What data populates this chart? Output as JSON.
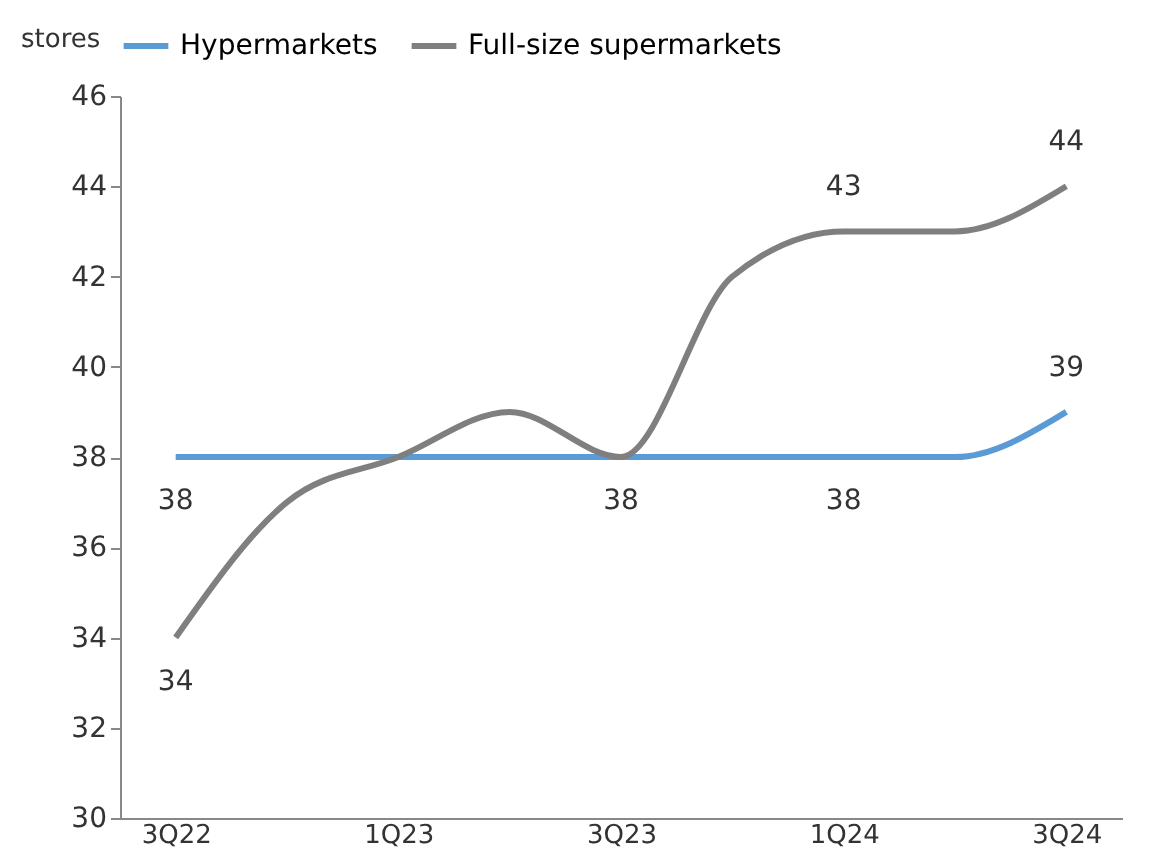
{
  "chart_data": {
    "type": "line",
    "ylabel": "stores",
    "categories": [
      "3Q22",
      null,
      "1Q23",
      null,
      "3Q23",
      null,
      "1Q24",
      null,
      "3Q24"
    ],
    "series": [
      {
        "name": "Hypermarkets",
        "color": "#5b9bd5",
        "values": [
          38,
          38,
          38,
          38,
          38,
          38,
          38,
          38,
          39
        ],
        "value_labels": [
          "38",
          null,
          null,
          null,
          "38",
          null,
          "38",
          null,
          "39"
        ]
      },
      {
        "name": "Full-size supermarkets",
        "color": "#7f7f7f",
        "values": [
          34,
          37,
          38,
          39,
          38,
          42,
          43,
          43,
          44
        ],
        "value_labels": [
          "34",
          null,
          null,
          null,
          null,
          null,
          "43",
          null,
          "44"
        ]
      }
    ],
    "ylim": [
      30,
      46
    ],
    "yticks": [
      30,
      32,
      34,
      36,
      38,
      40,
      42,
      44,
      46
    ],
    "grid": false,
    "legend": "top",
    "marker": "none",
    "line_style": "solid"
  }
}
